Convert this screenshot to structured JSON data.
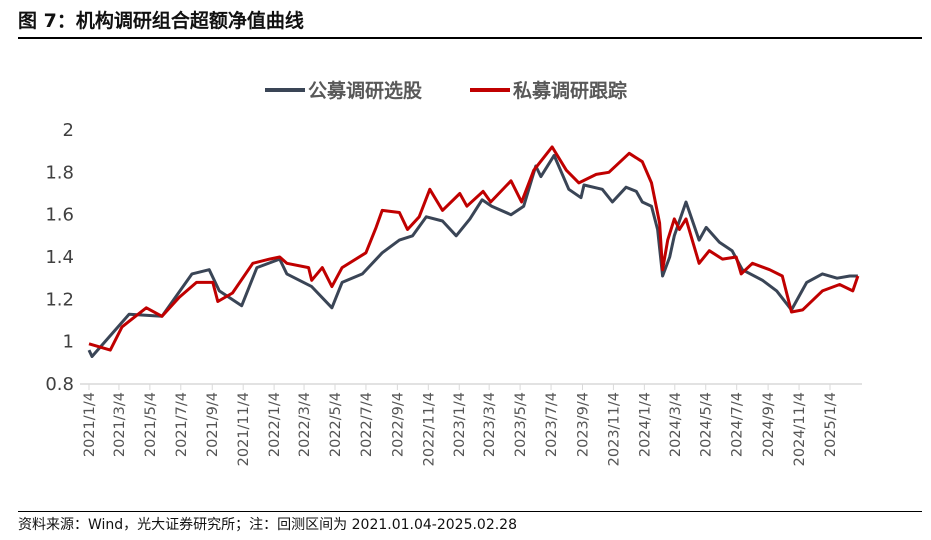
{
  "title": "图 7：机构调研组合超额净值曲线",
  "source": "资料来源：Wind，光大证券研究所；注：回测区间为 2021.01.04-2025.02.28",
  "chart_data": {
    "type": "line",
    "title": "",
    "xlabel": "",
    "ylabel": "",
    "ylim": [
      0.8,
      2
    ],
    "yticks": [
      "0.8",
      "1",
      "1.2",
      "1.4",
      "1.6",
      "1.8",
      "2"
    ],
    "xticks": [
      "2021/1/4",
      "2021/3/4",
      "2021/5/4",
      "2021/7/4",
      "2021/9/4",
      "2021/11/4",
      "2022/1/4",
      "2022/3/4",
      "2022/5/4",
      "2022/7/4",
      "2022/9/4",
      "2022/11/4",
      "2023/1/4",
      "2023/3/4",
      "2023/5/4",
      "2023/7/4",
      "2023/9/4",
      "2023/11/4",
      "2024/1/4",
      "2024/3/4",
      "2024/5/4",
      "2024/7/4",
      "2024/9/4",
      "2024/11/4",
      "2025/1/4"
    ],
    "xlim": [
      "2021-01-04",
      "2025-02-28"
    ],
    "grid": false,
    "legend_position": "top",
    "series": [
      {
        "name": "公募调研选股",
        "color": "#3a4556",
        "points": [
          [
            "2021-01-04",
            0.96
          ],
          [
            "2021-01-10",
            0.93
          ],
          [
            "2021-03-24",
            1.13
          ],
          [
            "2021-05-28",
            1.12
          ],
          [
            "2021-07-26",
            1.32
          ],
          [
            "2021-08-29",
            1.34
          ],
          [
            "2021-09-18",
            1.24
          ],
          [
            "2021-11-01",
            1.17
          ],
          [
            "2021-12-01",
            1.35
          ],
          [
            "2022-01-15",
            1.39
          ],
          [
            "2022-01-29",
            1.32
          ],
          [
            "2022-03-19",
            1.26
          ],
          [
            "2022-04-28",
            1.16
          ],
          [
            "2022-05-18",
            1.28
          ],
          [
            "2022-06-27",
            1.32
          ],
          [
            "2022-08-05",
            1.42
          ],
          [
            "2022-09-08",
            1.48
          ],
          [
            "2022-10-04",
            1.5
          ],
          [
            "2022-10-31",
            1.59
          ],
          [
            "2022-12-02",
            1.57
          ],
          [
            "2022-12-29",
            1.5
          ],
          [
            "2023-01-25",
            1.58
          ],
          [
            "2023-02-18",
            1.67
          ],
          [
            "2023-03-09",
            1.64
          ],
          [
            "2023-04-16",
            1.6
          ],
          [
            "2023-05-11",
            1.64
          ],
          [
            "2023-06-04",
            1.83
          ],
          [
            "2023-06-14",
            1.78
          ],
          [
            "2023-07-10",
            1.88
          ],
          [
            "2023-08-08",
            1.72
          ],
          [
            "2023-09-01",
            1.68
          ],
          [
            "2023-09-07",
            1.74
          ],
          [
            "2023-10-13",
            1.72
          ],
          [
            "2023-11-02",
            1.66
          ],
          [
            "2023-11-29",
            1.73
          ],
          [
            "2023-12-19",
            1.71
          ],
          [
            "2023-12-31",
            1.66
          ],
          [
            "2024-01-18",
            1.64
          ],
          [
            "2024-01-30",
            1.53
          ],
          [
            "2024-02-09",
            1.31
          ],
          [
            "2024-02-23",
            1.4
          ],
          [
            "2024-03-03",
            1.5
          ],
          [
            "2024-03-26",
            1.66
          ],
          [
            "2024-04-21",
            1.48
          ],
          [
            "2024-05-05",
            1.54
          ],
          [
            "2024-05-31",
            1.47
          ],
          [
            "2024-06-25",
            1.43
          ],
          [
            "2024-07-15",
            1.34
          ],
          [
            "2024-08-24",
            1.29
          ],
          [
            "2024-09-21",
            1.24
          ],
          [
            "2024-10-20",
            1.15
          ],
          [
            "2024-11-19",
            1.28
          ],
          [
            "2024-12-20",
            1.32
          ],
          [
            "2025-01-18",
            1.3
          ],
          [
            "2025-02-12",
            1.31
          ],
          [
            "2025-02-28",
            1.31
          ]
        ]
      },
      {
        "name": "私募调研跟踪",
        "color": "#c00000",
        "points": [
          [
            "2021-01-04",
            0.99
          ],
          [
            "2021-02-15",
            0.96
          ],
          [
            "2021-03-10",
            1.07
          ],
          [
            "2021-04-27",
            1.16
          ],
          [
            "2021-05-28",
            1.12
          ],
          [
            "2021-07-01",
            1.21
          ],
          [
            "2021-08-04",
            1.28
          ],
          [
            "2021-09-05",
            1.28
          ],
          [
            "2021-09-15",
            1.19
          ],
          [
            "2021-10-14",
            1.23
          ],
          [
            "2021-11-23",
            1.37
          ],
          [
            "2021-12-26",
            1.39
          ],
          [
            "2022-01-15",
            1.4
          ],
          [
            "2022-01-29",
            1.37
          ],
          [
            "2022-03-13",
            1.35
          ],
          [
            "2022-03-19",
            1.29
          ],
          [
            "2022-04-09",
            1.35
          ],
          [
            "2022-04-28",
            1.26
          ],
          [
            "2022-05-18",
            1.35
          ],
          [
            "2022-07-04",
            1.42
          ],
          [
            "2022-07-24",
            1.54
          ],
          [
            "2022-08-05",
            1.62
          ],
          [
            "2022-09-08",
            1.61
          ],
          [
            "2022-09-24",
            1.53
          ],
          [
            "2022-10-17",
            1.59
          ],
          [
            "2022-11-07",
            1.72
          ],
          [
            "2022-12-02",
            1.62
          ],
          [
            "2023-01-05",
            1.7
          ],
          [
            "2023-01-19",
            1.64
          ],
          [
            "2023-02-20",
            1.71
          ],
          [
            "2023-03-07",
            1.66
          ],
          [
            "2023-04-16",
            1.76
          ],
          [
            "2023-05-07",
            1.66
          ],
          [
            "2023-05-31",
            1.81
          ],
          [
            "2023-07-06",
            1.92
          ],
          [
            "2023-08-03",
            1.81
          ],
          [
            "2023-08-28",
            1.75
          ],
          [
            "2023-10-01",
            1.79
          ],
          [
            "2023-10-26",
            1.8
          ],
          [
            "2023-12-05",
            1.89
          ],
          [
            "2023-12-31",
            1.85
          ],
          [
            "2024-01-18",
            1.75
          ],
          [
            "2024-02-03",
            1.56
          ],
          [
            "2024-02-09",
            1.34
          ],
          [
            "2024-02-19",
            1.48
          ],
          [
            "2024-03-03",
            1.58
          ],
          [
            "2024-03-13",
            1.53
          ],
          [
            "2024-03-26",
            1.58
          ],
          [
            "2024-04-21",
            1.37
          ],
          [
            "2024-05-11",
            1.43
          ],
          [
            "2024-06-06",
            1.39
          ],
          [
            "2024-07-03",
            1.4
          ],
          [
            "2024-07-13",
            1.32
          ],
          [
            "2024-08-04",
            1.37
          ],
          [
            "2024-09-07",
            1.34
          ],
          [
            "2024-10-02",
            1.31
          ],
          [
            "2024-10-20",
            1.14
          ],
          [
            "2024-11-11",
            1.15
          ],
          [
            "2024-12-20",
            1.24
          ],
          [
            "2025-01-23",
            1.27
          ],
          [
            "2025-02-18",
            1.24
          ],
          [
            "2025-02-28",
            1.31
          ]
        ]
      }
    ]
  }
}
